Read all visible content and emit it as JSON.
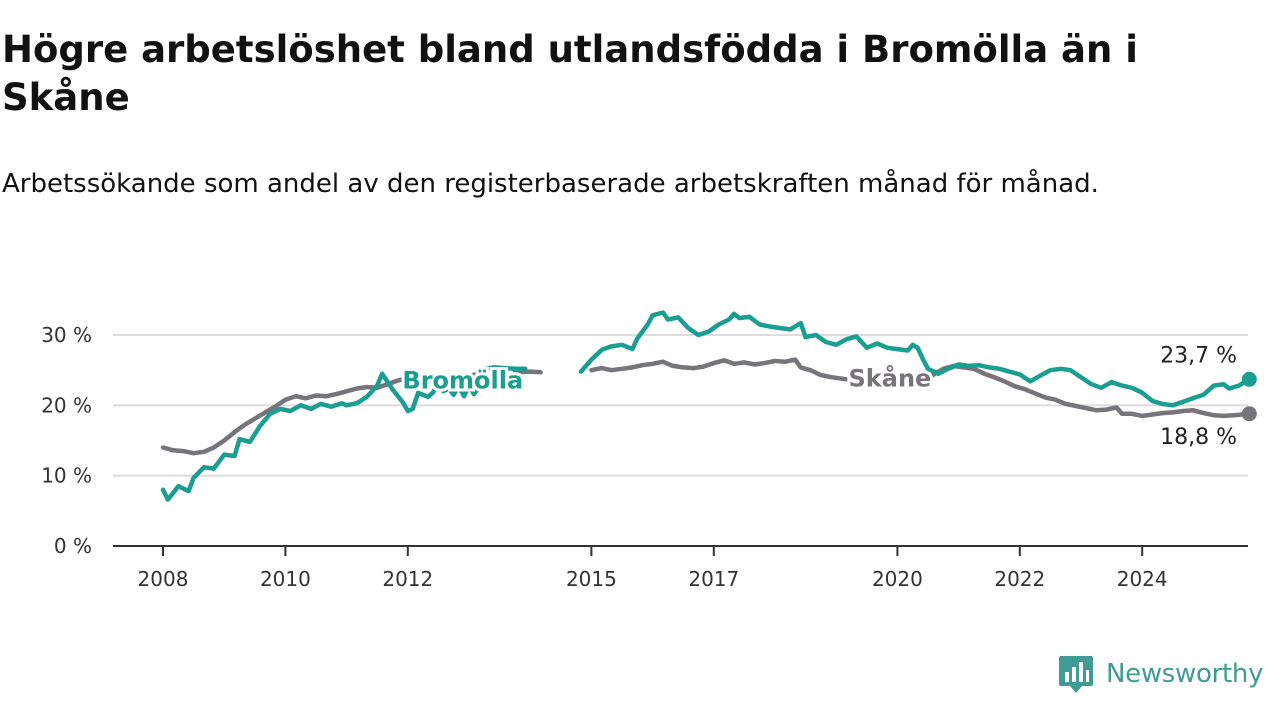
{
  "title": "Högre arbetslöshet bland utlandsfödda i Bromölla än i Skåne",
  "subtitle": "Arbetssökande som andel av den registerbaserade arbetskraften månad för månad.",
  "brand": {
    "name": "Newsworthy",
    "icon": "newsworthy-logo-icon"
  },
  "colors": {
    "bromolla": "#1a9e92",
    "skane": "#77747a",
    "grid": "#dcdcdc",
    "axis": "#333333"
  },
  "chart_data": {
    "type": "line",
    "title": "Högre arbetslöshet bland utlandsfödda i Bromölla än i Skåne",
    "subtitle": "Arbetssökande som andel av den registerbaserade arbetskraften månad för månad.",
    "xlabel": "",
    "ylabel": "",
    "xlim": [
      2008,
      2025
    ],
    "ylim": [
      0,
      30
    ],
    "yticks": [
      0,
      10,
      20,
      30
    ],
    "ytick_labels": [
      "0 %",
      "10 %",
      "20 %",
      "30 %"
    ],
    "xticks": [
      2008,
      2010,
      2012,
      2015,
      2017,
      2020,
      2022,
      2024
    ],
    "xtick_labels": [
      "2008",
      "2010",
      "2012",
      "2015",
      "2017",
      "2020",
      "2022",
      "2024"
    ],
    "grid": true,
    "series": [
      {
        "name": "Bromölla",
        "color": "#1a9e92",
        "end_label": "23,7 %",
        "segments": [
          [
            [
              2008.0,
              8.0
            ],
            [
              2008.08,
              6.6
            ],
            [
              2008.25,
              8.5
            ],
            [
              2008.42,
              7.8
            ],
            [
              2008.5,
              9.7
            ],
            [
              2008.67,
              11.2
            ],
            [
              2008.83,
              11.0
            ],
            [
              2009.0,
              13.0
            ],
            [
              2009.17,
              12.8
            ],
            [
              2009.25,
              15.2
            ],
            [
              2009.42,
              14.8
            ],
            [
              2009.58,
              17.0
            ],
            [
              2009.75,
              18.8
            ],
            [
              2009.92,
              19.5
            ],
            [
              2010.08,
              19.2
            ],
            [
              2010.25,
              20.0
            ],
            [
              2010.42,
              19.5
            ],
            [
              2010.58,
              20.2
            ],
            [
              2010.75,
              19.8
            ],
            [
              2010.92,
              20.3
            ],
            [
              2011.0,
              20.0
            ],
            [
              2011.17,
              20.3
            ],
            [
              2011.33,
              21.2
            ],
            [
              2011.5,
              22.8
            ],
            [
              2011.58,
              24.5
            ],
            [
              2011.75,
              22.3
            ],
            [
              2011.92,
              20.4
            ],
            [
              2012.0,
              19.2
            ],
            [
              2012.08,
              19.5
            ],
            [
              2012.17,
              21.8
            ],
            [
              2012.33,
              21.2
            ],
            [
              2012.42,
              21.9
            ],
            [
              2012.5,
              23.5
            ],
            [
              2012.58,
              22.0
            ],
            [
              2012.67,
              22.4
            ],
            [
              2012.75,
              21.5
            ],
            [
              2012.83,
              22.7
            ],
            [
              2012.92,
              21.3
            ],
            [
              2013.0,
              22.8
            ],
            [
              2013.08,
              21.6
            ],
            [
              2013.17,
              22.6
            ]
          ],
          [
            [
              2013.25,
              25.2
            ],
            [
              2013.42,
              25.4
            ],
            [
              2013.58,
              25.3
            ],
            [
              2013.75,
              25.2
            ],
            [
              2013.92,
              25.2
            ]
          ],
          [
            [
              2014.83,
              24.8
            ],
            [
              2015.0,
              26.5
            ],
            [
              2015.17,
              27.9
            ],
            [
              2015.33,
              28.4
            ],
            [
              2015.5,
              28.6
            ],
            [
              2015.67,
              28.0
            ],
            [
              2015.75,
              29.5
            ],
            [
              2015.92,
              31.5
            ],
            [
              2016.0,
              32.8
            ],
            [
              2016.17,
              33.2
            ],
            [
              2016.25,
              32.2
            ],
            [
              2016.42,
              32.5
            ],
            [
              2016.58,
              31.0
            ],
            [
              2016.75,
              30.0
            ],
            [
              2016.92,
              30.5
            ],
            [
              2017.08,
              31.5
            ],
            [
              2017.25,
              32.2
            ],
            [
              2017.33,
              33.0
            ],
            [
              2017.42,
              32.4
            ],
            [
              2017.58,
              32.6
            ],
            [
              2017.75,
              31.5
            ],
            [
              2017.92,
              31.2
            ],
            [
              2018.08,
              31.0
            ],
            [
              2018.25,
              30.8
            ],
            [
              2018.42,
              31.7
            ],
            [
              2018.5,
              29.7
            ],
            [
              2018.67,
              30.0
            ],
            [
              2018.83,
              29.0
            ],
            [
              2019.0,
              28.6
            ],
            [
              2019.17,
              29.4
            ],
            [
              2019.33,
              29.8
            ],
            [
              2019.5,
              28.2
            ],
            [
              2019.67,
              28.8
            ],
            [
              2019.83,
              28.2
            ],
            [
              2020.0,
              28.0
            ],
            [
              2020.17,
              27.8
            ],
            [
              2020.25,
              28.6
            ],
            [
              2020.33,
              28.2
            ],
            [
              2020.42,
              26.5
            ],
            [
              2020.5,
              25.2
            ],
            [
              2020.67,
              24.5
            ],
            [
              2020.83,
              25.2
            ],
            [
              2021.0,
              25.8
            ],
            [
              2021.17,
              25.6
            ],
            [
              2021.33,
              25.7
            ],
            [
              2021.5,
              25.4
            ],
            [
              2021.67,
              25.2
            ],
            [
              2021.83,
              24.8
            ],
            [
              2022.0,
              24.4
            ],
            [
              2022.17,
              23.4
            ],
            [
              2022.33,
              24.2
            ],
            [
              2022.5,
              25.0
            ],
            [
              2022.67,
              25.2
            ],
            [
              2022.83,
              25.0
            ],
            [
              2023.0,
              24.0
            ],
            [
              2023.17,
              23.0
            ],
            [
              2023.33,
              22.5
            ],
            [
              2023.5,
              23.3
            ],
            [
              2023.67,
              22.8
            ],
            [
              2023.83,
              22.5
            ],
            [
              2024.0,
              21.8
            ],
            [
              2024.17,
              20.6
            ],
            [
              2024.33,
              20.2
            ],
            [
              2024.5,
              20.0
            ],
            [
              2024.67,
              20.5
            ],
            [
              2024.83,
              21.0
            ],
            [
              2025.0,
              21.5
            ],
            [
              2025.17,
              22.8
            ],
            [
              2025.33,
              23.0
            ],
            [
              2025.42,
              22.4
            ],
            [
              2025.58,
              22.8
            ],
            [
              2025.75,
              23.7
            ]
          ]
        ]
      },
      {
        "name": "Skåne",
        "color": "#77747a",
        "end_label": "18,8 %",
        "segments": [
          [
            [
              2008.0,
              14.0
            ],
            [
              2008.17,
              13.6
            ],
            [
              2008.33,
              13.5
            ],
            [
              2008.5,
              13.2
            ],
            [
              2008.67,
              13.4
            ],
            [
              2008.83,
              14.0
            ],
            [
              2009.0,
              15.0
            ],
            [
              2009.17,
              16.2
            ],
            [
              2009.33,
              17.2
            ],
            [
              2009.5,
              18.1
            ],
            [
              2009.67,
              19.0
            ],
            [
              2009.83,
              19.8
            ],
            [
              2010.0,
              20.8
            ],
            [
              2010.17,
              21.3
            ],
            [
              2010.33,
              21.0
            ],
            [
              2010.5,
              21.4
            ],
            [
              2010.67,
              21.3
            ],
            [
              2010.83,
              21.6
            ],
            [
              2011.0,
              22.0
            ],
            [
              2011.17,
              22.4
            ],
            [
              2011.33,
              22.6
            ],
            [
              2011.5,
              22.5
            ],
            [
              2011.67,
              23.0
            ],
            [
              2011.83,
              23.5
            ],
            [
              2012.0,
              23.9
            ],
            [
              2012.17,
              23.5
            ],
            [
              2012.33,
              23.6
            ],
            [
              2012.5,
              23.3
            ],
            [
              2012.67,
              23.6
            ],
            [
              2012.83,
              23.8
            ],
            [
              2013.0,
              24.2
            ],
            [
              2013.17,
              24.5
            ]
          ],
          [
            [
              2013.75,
              24.7
            ],
            [
              2014.0,
              24.8
            ],
            [
              2014.17,
              24.7
            ]
          ],
          [
            [
              2015.0,
              25.0
            ],
            [
              2015.17,
              25.3
            ],
            [
              2015.33,
              25.0
            ],
            [
              2015.5,
              25.2
            ],
            [
              2015.67,
              25.4
            ],
            [
              2015.83,
              25.7
            ],
            [
              2016.0,
              25.9
            ],
            [
              2016.17,
              26.2
            ],
            [
              2016.33,
              25.6
            ],
            [
              2016.5,
              25.4
            ],
            [
              2016.67,
              25.3
            ],
            [
              2016.83,
              25.5
            ],
            [
              2017.0,
              26.0
            ],
            [
              2017.17,
              26.4
            ],
            [
              2017.33,
              25.9
            ],
            [
              2017.5,
              26.1
            ],
            [
              2017.67,
              25.8
            ],
            [
              2017.83,
              26.0
            ],
            [
              2018.0,
              26.3
            ],
            [
              2018.17,
              26.2
            ],
            [
              2018.33,
              26.5
            ],
            [
              2018.42,
              25.4
            ],
            [
              2018.58,
              25.0
            ],
            [
              2018.75,
              24.3
            ],
            [
              2018.92,
              24.0
            ],
            [
              2019.17,
              23.7
            ]
          ],
          [
            [
              2020.25,
              23.5
            ],
            [
              2020.42,
              23.6
            ],
            [
              2020.58,
              24.3
            ],
            [
              2020.75,
              25.2
            ],
            [
              2020.92,
              25.6
            ],
            [
              2021.08,
              25.4
            ],
            [
              2021.25,
              25.2
            ],
            [
              2021.42,
              24.5
            ],
            [
              2021.58,
              24.0
            ],
            [
              2021.75,
              23.4
            ],
            [
              2021.92,
              22.7
            ],
            [
              2022.08,
              22.3
            ],
            [
              2022.25,
              21.7
            ],
            [
              2022.42,
              21.1
            ],
            [
              2022.58,
              20.8
            ],
            [
              2022.75,
              20.2
            ],
            [
              2022.92,
              19.9
            ],
            [
              2023.08,
              19.6
            ],
            [
              2023.25,
              19.3
            ],
            [
              2023.42,
              19.4
            ],
            [
              2023.58,
              19.7
            ],
            [
              2023.67,
              18.8
            ],
            [
              2023.83,
              18.8
            ],
            [
              2024.0,
              18.5
            ],
            [
              2024.17,
              18.7
            ],
            [
              2024.33,
              18.9
            ],
            [
              2024.5,
              19.0
            ],
            [
              2024.67,
              19.2
            ],
            [
              2024.83,
              19.3
            ],
            [
              2025.0,
              18.9
            ],
            [
              2025.17,
              18.6
            ],
            [
              2025.33,
              18.5
            ],
            [
              2025.5,
              18.6
            ],
            [
              2025.75,
              18.8
            ]
          ]
        ]
      }
    ],
    "annotations": [
      {
        "text": "Bromölla",
        "series": "Bromölla",
        "x": 2014.0,
        "y": 23.5
      },
      {
        "text": "Skåne",
        "series": "Skåne",
        "x": 2019.25,
        "y": 23.8
      }
    ]
  }
}
